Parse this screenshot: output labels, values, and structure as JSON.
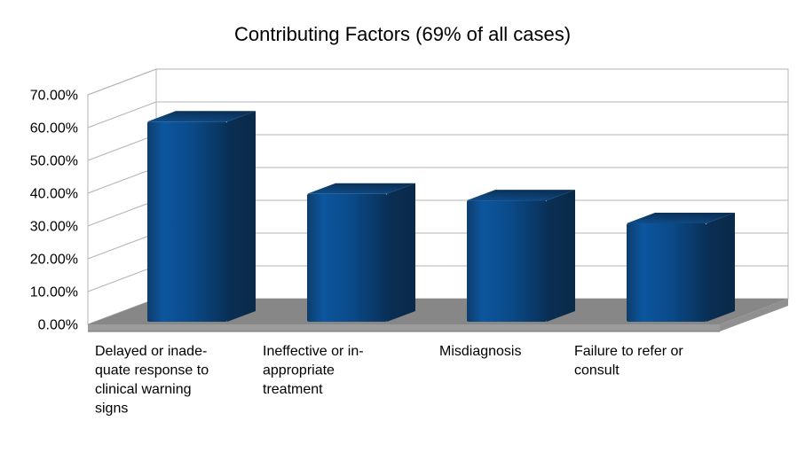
{
  "window": {
    "background": "#ffffff"
  },
  "chart_data": {
    "type": "bar",
    "projection": "3d",
    "title": "Contributing Factors (69% of all cases)",
    "categories": [
      "Delayed or inadequate response to clinical warning signs",
      "Ineffective or inappropriate treatment",
      "Misdiagnosis",
      "Failure to refer or consult"
    ],
    "category_display_lines": [
      [
        "Delayed or inade-",
        "quate response to",
        "clinical warning",
        "signs"
      ],
      [
        "Ineffective or in-",
        "appropriate",
        "treatment"
      ],
      [
        "Misdiagnosis"
      ],
      [
        "Failure to refer or",
        "consult"
      ]
    ],
    "values_percent": [
      61,
      39,
      37,
      30
    ],
    "ylim_percent": [
      0,
      70
    ],
    "ytick_step_percent": 10,
    "ytick_labels": [
      "0.00%",
      "10.00%",
      "20.00%",
      "30.00%",
      "40.00%",
      "50.00%",
      "60.00%",
      "70.00%"
    ],
    "grid": true,
    "legend": "none",
    "xlabel": "",
    "ylabel": "",
    "colors": {
      "bar_front": "#0B4A89",
      "bar_front_highlight": "#0C569E",
      "bar_front_shadow": "#093159",
      "bar_side": "#092947",
      "bar_top_front": "#0F4E8C",
      "bar_top_back": "#0A3158",
      "floor_top": "#878787",
      "floor_front": "#9C9C9C",
      "floor_side": "#909090",
      "floor_edge": "#6F6F6F",
      "wall_fill": "#FFFFFF",
      "wall_outline": "#B3B3B3",
      "gridline": "#B3B3B3",
      "text": "#000000"
    }
  }
}
